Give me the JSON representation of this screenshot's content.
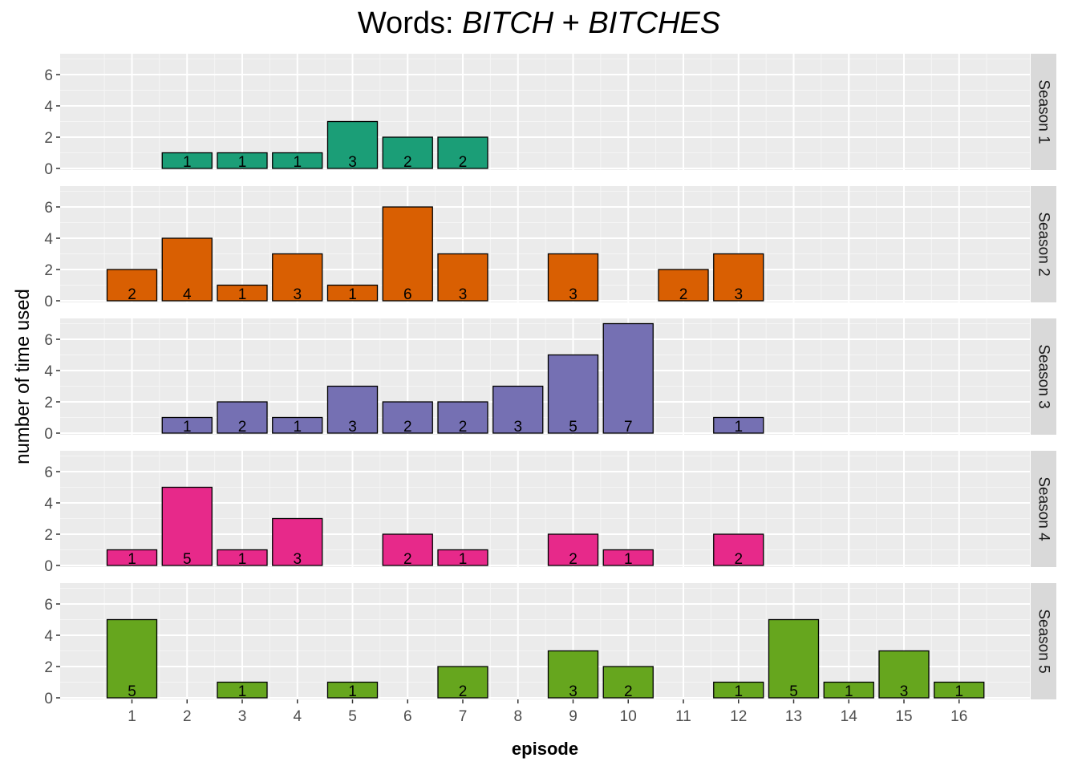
{
  "title_prefix": "Words: ",
  "title_word1": "BITCH",
  "title_plus": " + ",
  "title_word2": "BITCHES",
  "chart_data": {
    "type": "bar",
    "title": "Words: BITCH + BITCHES",
    "xlabel": "episode",
    "ylabel": "number of time used",
    "x_ticks": [
      1,
      2,
      3,
      4,
      5,
      6,
      7,
      8,
      9,
      10,
      11,
      12,
      13,
      14,
      15,
      16
    ],
    "y_ticks": [
      0,
      2,
      4,
      6
    ],
    "ylim": [
      0,
      7
    ],
    "grid": true,
    "facets": [
      {
        "label": "Season  1",
        "color": "#1b9e77",
        "episodes": [
          2,
          3,
          4,
          5,
          6,
          7
        ],
        "values": [
          1,
          1,
          1,
          3,
          2,
          2
        ]
      },
      {
        "label": "Season  2",
        "color": "#d95f02",
        "episodes": [
          1,
          2,
          3,
          4,
          5,
          6,
          7,
          9,
          11,
          12
        ],
        "values": [
          2,
          4,
          1,
          3,
          1,
          6,
          3,
          3,
          2,
          3
        ]
      },
      {
        "label": "Season  3",
        "color": "#7570b3",
        "episodes": [
          2,
          3,
          4,
          5,
          6,
          7,
          8,
          9,
          10,
          12
        ],
        "values": [
          1,
          2,
          1,
          3,
          2,
          2,
          3,
          5,
          7,
          1
        ]
      },
      {
        "label": "Season  4",
        "color": "#e7298a",
        "episodes": [
          1,
          2,
          3,
          4,
          6,
          7,
          9,
          10,
          12
        ],
        "values": [
          1,
          5,
          1,
          3,
          2,
          1,
          2,
          1,
          2
        ]
      },
      {
        "label": "Season  5",
        "color": "#66a61e",
        "episodes": [
          1,
          3,
          5,
          7,
          9,
          10,
          12,
          13,
          14,
          15,
          16
        ],
        "values": [
          5,
          1,
          1,
          2,
          3,
          2,
          1,
          5,
          1,
          3,
          1
        ]
      }
    ]
  }
}
